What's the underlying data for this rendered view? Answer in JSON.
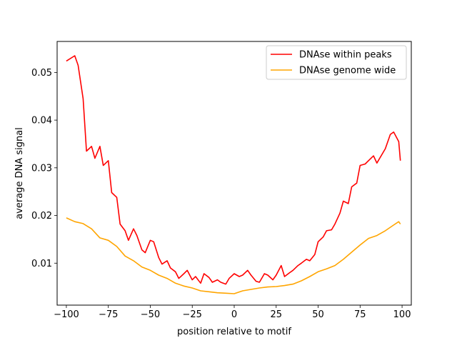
{
  "chart_data": {
    "type": "line",
    "title": "",
    "xlabel": "position relative to motif",
    "ylabel": "average DNA signal",
    "xlim": [
      -105.5,
      105.5
    ],
    "ylim": [
      0.0012,
      0.0565
    ],
    "xticks": [
      -100,
      -75,
      -50,
      -25,
      0,
      25,
      50,
      75,
      100
    ],
    "xtick_labels": [
      "−100",
      "−75",
      "−50",
      "−25",
      "0",
      "25",
      "50",
      "75",
      "100"
    ],
    "yticks": [
      0.01,
      0.02,
      0.03,
      0.04,
      0.05
    ],
    "ytick_labels": [
      "0.01",
      "0.02",
      "0.03",
      "0.04",
      "0.05"
    ],
    "grid": false,
    "legend_position": "top-right",
    "series": [
      {
        "name": "DNAse within peaks",
        "color": "#ff0000",
        "x": [
          -100,
          -95,
          -93,
          -90,
          -88,
          -85,
          -83,
          -80,
          -78,
          -75,
          -73,
          -70,
          -68,
          -65,
          -63,
          -60,
          -58,
          -55,
          -53,
          -50,
          -48,
          -45,
          -43,
          -40,
          -38,
          -35,
          -33,
          -30,
          -28,
          -25,
          -23,
          -20,
          -18,
          -15,
          -13,
          -10,
          -8,
          -5,
          -3,
          0,
          3,
          5,
          8,
          10,
          13,
          15,
          18,
          20,
          23,
          25,
          28,
          30,
          33,
          35,
          38,
          40,
          43,
          45,
          48,
          50,
          53,
          55,
          58,
          60,
          63,
          65,
          68,
          70,
          73,
          75,
          78,
          80,
          83,
          85,
          88,
          90,
          93,
          95,
          98,
          99
        ],
        "values": [
          0.0524,
          0.0535,
          0.0515,
          0.0445,
          0.0335,
          0.0345,
          0.032,
          0.0345,
          0.0305,
          0.0315,
          0.0248,
          0.0238,
          0.0182,
          0.0168,
          0.0148,
          0.0172,
          0.0158,
          0.0128,
          0.0122,
          0.0148,
          0.0145,
          0.0112,
          0.0098,
          0.0105,
          0.009,
          0.0082,
          0.0068,
          0.0078,
          0.0085,
          0.0065,
          0.0072,
          0.0058,
          0.0078,
          0.007,
          0.006,
          0.0065,
          0.006,
          0.0056,
          0.0068,
          0.0078,
          0.0072,
          0.0075,
          0.0085,
          0.0075,
          0.0062,
          0.006,
          0.0078,
          0.0075,
          0.0065,
          0.0075,
          0.0095,
          0.0072,
          0.008,
          0.0085,
          0.0095,
          0.01,
          0.0108,
          0.0105,
          0.0118,
          0.0145,
          0.0155,
          0.0168,
          0.017,
          0.0182,
          0.0205,
          0.023,
          0.0225,
          0.026,
          0.0268,
          0.0305,
          0.0308,
          0.0315,
          0.0325,
          0.031,
          0.0328,
          0.034,
          0.037,
          0.0375,
          0.0355,
          0.0315
        ]
      },
      {
        "name": "DNAse genome wide",
        "color": "#ffa500",
        "x": [
          -100,
          -95,
          -90,
          -85,
          -80,
          -75,
          -70,
          -65,
          -60,
          -55,
          -50,
          -45,
          -40,
          -35,
          -30,
          -25,
          -20,
          -15,
          -10,
          -5,
          0,
          5,
          10,
          15,
          20,
          25,
          30,
          35,
          40,
          45,
          50,
          55,
          60,
          65,
          70,
          75,
          80,
          85,
          90,
          95,
          98,
          99
        ],
        "values": [
          0.0195,
          0.0187,
          0.0183,
          0.0172,
          0.0153,
          0.0148,
          0.0135,
          0.0115,
          0.0105,
          0.0092,
          0.0085,
          0.0075,
          0.0068,
          0.0058,
          0.0052,
          0.0048,
          0.0042,
          0.004,
          0.0038,
          0.0037,
          0.0036,
          0.0042,
          0.0045,
          0.0048,
          0.005,
          0.0051,
          0.0053,
          0.0056,
          0.0063,
          0.0072,
          0.0082,
          0.0088,
          0.0095,
          0.0108,
          0.0123,
          0.0138,
          0.0152,
          0.0158,
          0.0168,
          0.018,
          0.0187,
          0.0182
        ]
      }
    ]
  }
}
